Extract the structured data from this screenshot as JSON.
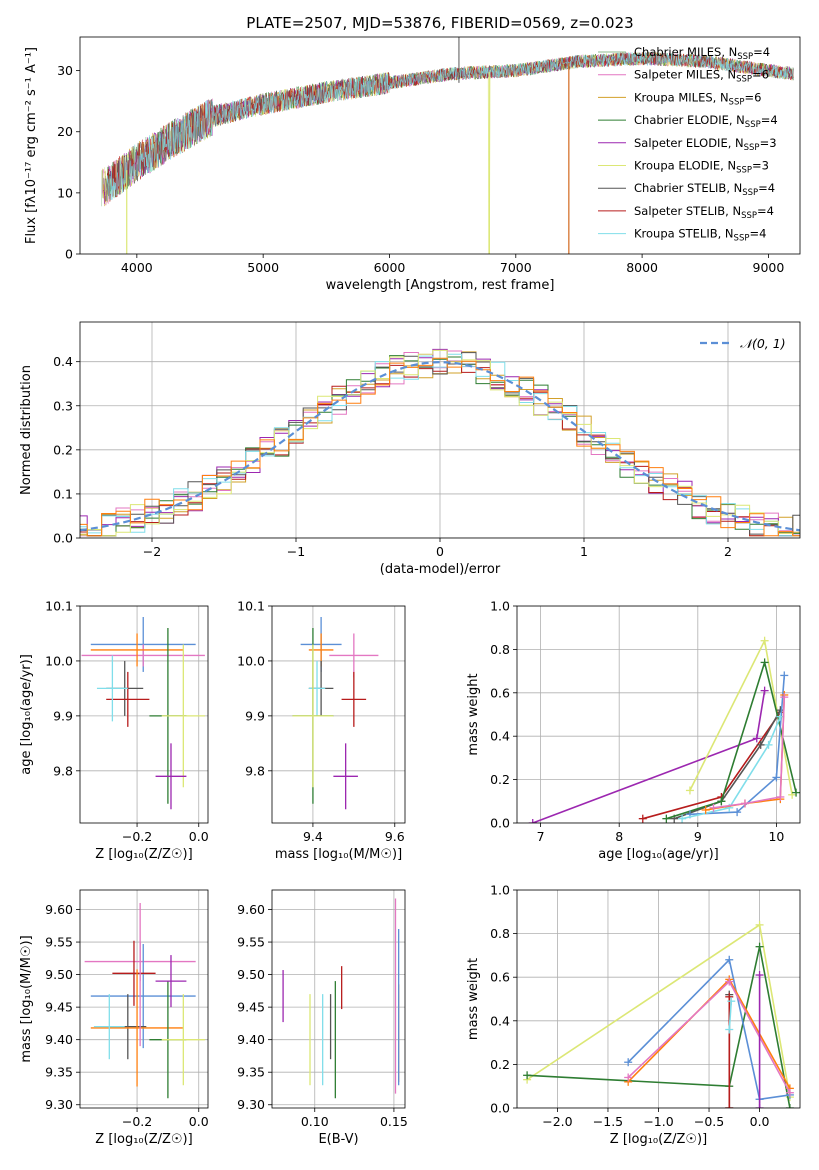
{
  "figure": {
    "title": "PLATE=2507, MJD=53876, FIBERID=0569, z=0.023"
  },
  "colors": {
    "grid": "#b0b0b0",
    "series": [
      "#6d6d6d",
      "#e377c2",
      "#ff7f0e",
      "#2f6f2f",
      "#9c27b0",
      "#d4e157",
      "#555555",
      "#b71c1c",
      "#80deea"
    ]
  },
  "chart_data": [
    {
      "id": "spectrum",
      "type": "line",
      "xlabel": "wavelength [Angstrom, rest frame]",
      "ylabel": "Flux [fλ10⁻¹⁷ erg cm⁻² s⁻¹ A⁻¹]",
      "xlim": [
        3550,
        9250
      ],
      "ylim": [
        0,
        35.5
      ],
      "xticks": [
        4000,
        5000,
        6000,
        7000,
        8000,
        9000
      ],
      "yticks": [
        0,
        10,
        20,
        30
      ],
      "grid": false,
      "legend_position": "upper-right",
      "legend": [
        {
          "name": "Chabrier MILES, N",
          "sub": "SSP",
          "suffix": "=4"
        },
        {
          "name": "Salpeter MILES, N",
          "sub": "SSP",
          "suffix": "=6"
        },
        {
          "name": "Kroupa MILES, N",
          "sub": "SSP",
          "suffix": "=6"
        },
        {
          "name": "Chabrier ELODIE, N",
          "sub": "SSP",
          "suffix": "=4"
        },
        {
          "name": "Salpeter ELODIE, N",
          "sub": "SSP",
          "suffix": "=3"
        },
        {
          "name": "Kroupa ELODIE, N",
          "sub": "SSP",
          "suffix": "=3"
        },
        {
          "name": "Chabrier STELIB, N",
          "sub": "SSP",
          "suffix": "=4"
        },
        {
          "name": "Salpeter STELIB, N",
          "sub": "SSP",
          "suffix": "=4"
        },
        {
          "name": "Kroupa STELIB, N",
          "sub": "SSP",
          "suffix": "=4"
        }
      ],
      "series_colors": [
        "#8fbc8f",
        "#e377c2",
        "#d2a02a",
        "#2e7d32",
        "#9c27b0",
        "#dce775",
        "#555555",
        "#b71c1c",
        "#80deea"
      ],
      "continuum": {
        "x": [
          3750,
          4000,
          4300,
          4600,
          5000,
          5500,
          6000,
          6500,
          7000,
          7500,
          8000,
          8500,
          9000,
          9200
        ],
        "y": [
          11,
          15,
          19,
          22.5,
          24.5,
          26.5,
          28,
          29.5,
          30,
          31.5,
          32,
          31.5,
          30,
          29.5
        ]
      },
      "dropouts": [
        {
          "x": 3920,
          "color": "#dce775"
        },
        {
          "x": 6790,
          "color": "#dce775"
        },
        {
          "x": 7420,
          "color": "#d2691e"
        }
      ],
      "spike": {
        "x": 6550,
        "y": 36
      }
    },
    {
      "id": "residuals",
      "type": "step",
      "xlabel": "(data-model)/error",
      "ylabel": "Normed distribution",
      "xlim": [
        -2.5,
        2.5
      ],
      "ylim": [
        0,
        0.49
      ],
      "xticks": [
        -2,
        -1,
        0,
        1,
        2
      ],
      "yticks": [
        0.0,
        0.1,
        0.2,
        0.3,
        0.4
      ],
      "grid": true,
      "legend": [
        {
          "name": "𝒩(0, 1)",
          "color": "#5b8fd6"
        }
      ],
      "legend_position": "upper-right",
      "bin_width": 0.1,
      "series_colors": [
        "#d2a02a",
        "#e377c2",
        "#9c27b0",
        "#b71c1c",
        "#2e7d32",
        "#555555",
        "#80deea",
        "#dce775",
        "#ff7f0e"
      ]
    },
    {
      "id": "age-vs-Z",
      "type": "errorbar",
      "xlabel": "Z [log₁₀(Z/Z☉)]",
      "ylabel": "age  [log₁₀(age/yr)]",
      "xlim": [
        -0.385,
        0.03
      ],
      "ylim": [
        9.705,
        10.1
      ],
      "xticks": [
        -0.2,
        0.0
      ],
      "yticks": [
        9.8,
        9.9,
        10.0,
        10.1
      ],
      "grid": true,
      "points": [
        {
          "x": -0.18,
          "y": 10.03,
          "xerr": 0.17,
          "yerr": 0.05,
          "color": "#5b8fd6"
        },
        {
          "x": -0.18,
          "y": 10.01,
          "xerr": 0.2,
          "yerr": 0.02,
          "color": "#e377c2"
        },
        {
          "x": -0.2,
          "y": 10.02,
          "xerr": 0.15,
          "yerr": 0.03,
          "color": "#ff7f0e"
        },
        {
          "x": -0.24,
          "y": 9.95,
          "xerr": 0.06,
          "yerr": 0.05,
          "color": "#555555"
        },
        {
          "x": -0.23,
          "y": 9.93,
          "xerr": 0.07,
          "yerr": 0.05,
          "color": "#b71c1c"
        },
        {
          "x": -0.28,
          "y": 9.95,
          "xerr": 0.05,
          "yerr": 0.06,
          "color": "#80deea"
        },
        {
          "x": -0.1,
          "y": 9.9,
          "xerr": 0.06,
          "yerr": 0.16,
          "color": "#2e7d32"
        },
        {
          "x": -0.05,
          "y": 9.9,
          "xerr": 0.07,
          "yerr": 0.13,
          "color": "#dce775"
        },
        {
          "x": -0.09,
          "y": 9.79,
          "xerr": 0.05,
          "yerr": 0.06,
          "color": "#9c27b0"
        }
      ]
    },
    {
      "id": "age-vs-mass",
      "type": "errorbar",
      "xlabel": "mass [log₁₀(M/M☉)]",
      "ylabel": "",
      "xlim": [
        9.3,
        9.625
      ],
      "ylim": [
        9.705,
        10.1
      ],
      "xticks": [
        9.4,
        9.6
      ],
      "yticks": [
        9.8,
        9.9,
        10.0,
        10.1
      ],
      "grid": true,
      "points": [
        {
          "x": 9.42,
          "y": 10.03,
          "xerr": 0.05,
          "yerr": 0.05,
          "color": "#5b8fd6"
        },
        {
          "x": 9.5,
          "y": 10.01,
          "xerr": 0.06,
          "yerr": 0.04,
          "color": "#e377c2"
        },
        {
          "x": 9.42,
          "y": 10.02,
          "xerr": 0.03,
          "yerr": 0.03,
          "color": "#ff7f0e"
        },
        {
          "x": 9.42,
          "y": 9.95,
          "xerr": 0.03,
          "yerr": 0.05,
          "color": "#555555"
        },
        {
          "x": 9.5,
          "y": 9.93,
          "xerr": 0.03,
          "yerr": 0.05,
          "color": "#b71c1c"
        },
        {
          "x": 9.41,
          "y": 9.95,
          "xerr": 0.02,
          "yerr": 0.05,
          "color": "#80deea"
        },
        {
          "x": 9.4,
          "y": 9.9,
          "xerr": 0.05,
          "yerr": 0.16,
          "color": "#2e7d32"
        },
        {
          "x": 9.4,
          "y": 9.9,
          "xerr": 0.05,
          "yerr": 0.13,
          "color": "#dce775"
        },
        {
          "x": 9.48,
          "y": 9.79,
          "xerr": 0.03,
          "yerr": 0.06,
          "color": "#9c27b0"
        }
      ]
    },
    {
      "id": "mass-weight-vs-age",
      "type": "line",
      "xlabel": "age  [log₁₀(age/yr)]",
      "ylabel": "mass weight",
      "xlim": [
        6.7,
        10.3
      ],
      "ylim": [
        0,
        1.0
      ],
      "xticks": [
        7,
        8,
        9,
        10
      ],
      "yticks": [
        0.0,
        0.2,
        0.4,
        0.6,
        0.8,
        1.0
      ],
      "grid": true,
      "series": [
        {
          "color": "#9c27b0",
          "x": [
            6.9,
            9.75,
            9.85
          ],
          "y": [
            0.0,
            0.39,
            0.61
          ]
        },
        {
          "color": "#dce775",
          "x": [
            8.9,
            9.85,
            10.2
          ],
          "y": [
            0.15,
            0.84,
            0.13
          ]
        },
        {
          "color": "#b71c1c",
          "x": [
            8.3,
            9.3,
            10.05
          ],
          "y": [
            0.02,
            0.12,
            0.51
          ]
        },
        {
          "color": "#555555",
          "x": [
            8.7,
            9.3,
            9.8,
            10.05
          ],
          "y": [
            0.02,
            0.1,
            0.36,
            0.52
          ]
        },
        {
          "color": "#2e7d32",
          "x": [
            8.6,
            9.3,
            9.85,
            10.25
          ],
          "y": [
            0.02,
            0.1,
            0.74,
            0.14
          ]
        },
        {
          "color": "#5b8fd6",
          "x": [
            8.9,
            9.5,
            10.0,
            10.1
          ],
          "y": [
            0.04,
            0.05,
            0.21,
            0.68
          ]
        },
        {
          "color": "#80deea",
          "x": [
            8.8,
            9.4,
            9.9,
            10.05
          ],
          "y": [
            0.02,
            0.07,
            0.36,
            0.49
          ]
        },
        {
          "color": "#ff7f0e",
          "x": [
            9.1,
            9.6,
            10.05,
            10.1
          ],
          "y": [
            0.06,
            0.09,
            0.11,
            0.59
          ]
        },
        {
          "color": "#e377c2",
          "x": [
            9.2,
            9.6,
            10.05,
            10.1
          ],
          "y": [
            0.07,
            0.09,
            0.12,
            0.58
          ]
        }
      ]
    },
    {
      "id": "mass-vs-Z",
      "type": "errorbar",
      "xlabel": "Z [log₁₀(Z/Z☉)]",
      "ylabel": "mass [log₁₀(M/M☉)]",
      "xlim": [
        -0.385,
        0.03
      ],
      "ylim": [
        9.295,
        9.63
      ],
      "xticks": [
        -0.2,
        0.0
      ],
      "yticks": [
        9.3,
        9.35,
        9.4,
        9.45,
        9.5,
        9.55,
        9.6
      ],
      "grid": true,
      "points": [
        {
          "x": -0.19,
          "y": 9.52,
          "xerr": 0.18,
          "yerr": 0.03,
          "color": "#e377c2"
        },
        {
          "x": -0.18,
          "y": 9.467,
          "xerr": 0.17,
          "yerr": 0.08,
          "color": "#5b8fd6"
        },
        {
          "x": -0.21,
          "y": 9.502,
          "xerr": 0.07,
          "yerr": 0.05,
          "color": "#b71c1c"
        },
        {
          "x": -0.23,
          "y": 9.42,
          "xerr": 0.06,
          "yerr": 0.05,
          "color": "#555555"
        },
        {
          "x": -0.2,
          "y": 9.418,
          "xerr": 0.15,
          "yerr": 0.09,
          "color": "#ff7f0e"
        },
        {
          "x": -0.29,
          "y": 9.42,
          "xerr": 0.05,
          "yerr": 0.05,
          "color": "#80deea"
        },
        {
          "x": -0.1,
          "y": 9.4,
          "xerr": 0.06,
          "yerr": 0.09,
          "color": "#2e7d32"
        },
        {
          "x": -0.05,
          "y": 9.4,
          "xerr": 0.07,
          "yerr": 0.07,
          "color": "#dce775"
        },
        {
          "x": -0.09,
          "y": 9.49,
          "xerr": 0.05,
          "yerr": 0.04,
          "color": "#9c27b0"
        },
        {
          "x": -0.19,
          "y": 9.5,
          "xerr": 0.0,
          "yerr": 0.11,
          "color": "#e377c2"
        }
      ]
    },
    {
      "id": "mass-vs-EBV",
      "type": "errorbar",
      "xlabel": "E(B-V)",
      "ylabel": "",
      "xlim": [
        0.073,
        0.157
      ],
      "ylim": [
        9.295,
        9.63
      ],
      "xticks": [
        0.1,
        0.15
      ],
      "yticks": [
        9.3,
        9.35,
        9.4,
        9.45,
        9.5,
        9.55,
        9.6
      ],
      "grid": true,
      "points": [
        {
          "x": 0.08,
          "y": 9.467,
          "xerr": 0,
          "yerr": 0.04,
          "color": "#9c27b0"
        },
        {
          "x": 0.097,
          "y": 9.4,
          "xerr": 0,
          "yerr": 0.07,
          "color": "#dce775"
        },
        {
          "x": 0.105,
          "y": 9.4,
          "xerr": 0,
          "yerr": 0.07,
          "color": "#80deea"
        },
        {
          "x": 0.11,
          "y": 9.42,
          "xerr": 0,
          "yerr": 0.05,
          "color": "#555555"
        },
        {
          "x": 0.113,
          "y": 9.4,
          "xerr": 0,
          "yerr": 0.09,
          "color": "#2e7d32"
        },
        {
          "x": 0.117,
          "y": 9.48,
          "xerr": 0,
          "yerr": 0.033,
          "color": "#b71c1c"
        },
        {
          "x": 0.151,
          "y": 9.467,
          "xerr": 0,
          "yerr": 0.15,
          "color": "#e377c2"
        },
        {
          "x": 0.153,
          "y": 9.41,
          "xerr": 0,
          "yerr": 0.075,
          "color": "#ff7f0e"
        },
        {
          "x": 0.153,
          "y": 9.45,
          "xerr": 0,
          "yerr": 0.12,
          "color": "#5b8fd6"
        }
      ]
    },
    {
      "id": "mass-weight-vs-Z",
      "type": "line",
      "xlabel": "Z [log₁₀(Z/Z☉)]",
      "ylabel": "mass weight",
      "xlim": [
        -2.4,
        0.4
      ],
      "ylim": [
        0,
        1.0
      ],
      "xticks": [
        -2.0,
        -1.5,
        -1.0,
        -0.5,
        0.0
      ],
      "yticks": [
        0.0,
        0.2,
        0.4,
        0.6,
        0.8,
        1.0
      ],
      "grid": true,
      "series": [
        {
          "color": "#dce775",
          "x": [
            -2.3,
            0.0,
            0.3
          ],
          "y": [
            0.13,
            0.84,
            0.05
          ]
        },
        {
          "color": "#2e7d32",
          "x": [
            -2.3,
            -0.3,
            0.0,
            0.3
          ],
          "y": [
            0.15,
            0.1,
            0.74,
            0.0
          ]
        },
        {
          "color": "#5b8fd6",
          "x": [
            -1.3,
            -0.3,
            0.0,
            0.3
          ],
          "y": [
            0.21,
            0.68,
            0.04,
            0.06
          ]
        },
        {
          "color": "#ff7f0e",
          "x": [
            -1.3,
            -0.3,
            0.3
          ],
          "y": [
            0.12,
            0.59,
            0.09
          ]
        },
        {
          "color": "#e377c2",
          "x": [
            -1.3,
            -0.3,
            0.3
          ],
          "y": [
            0.14,
            0.58,
            0.07
          ]
        },
        {
          "color": "#9c27b0",
          "x": [
            0.0,
            0.0
          ],
          "y": [
            0.0,
            0.61
          ]
        },
        {
          "color": "#555555",
          "x": [
            -0.3,
            -0.3
          ],
          "y": [
            0.0,
            0.52
          ]
        },
        {
          "color": "#b71c1c",
          "x": [
            -0.3,
            -0.3
          ],
          "y": [
            0.0,
            0.51
          ]
        },
        {
          "color": "#80deea",
          "x": [
            -0.3,
            -0.28
          ],
          "y": [
            0.36,
            0.49
          ]
        }
      ]
    }
  ]
}
